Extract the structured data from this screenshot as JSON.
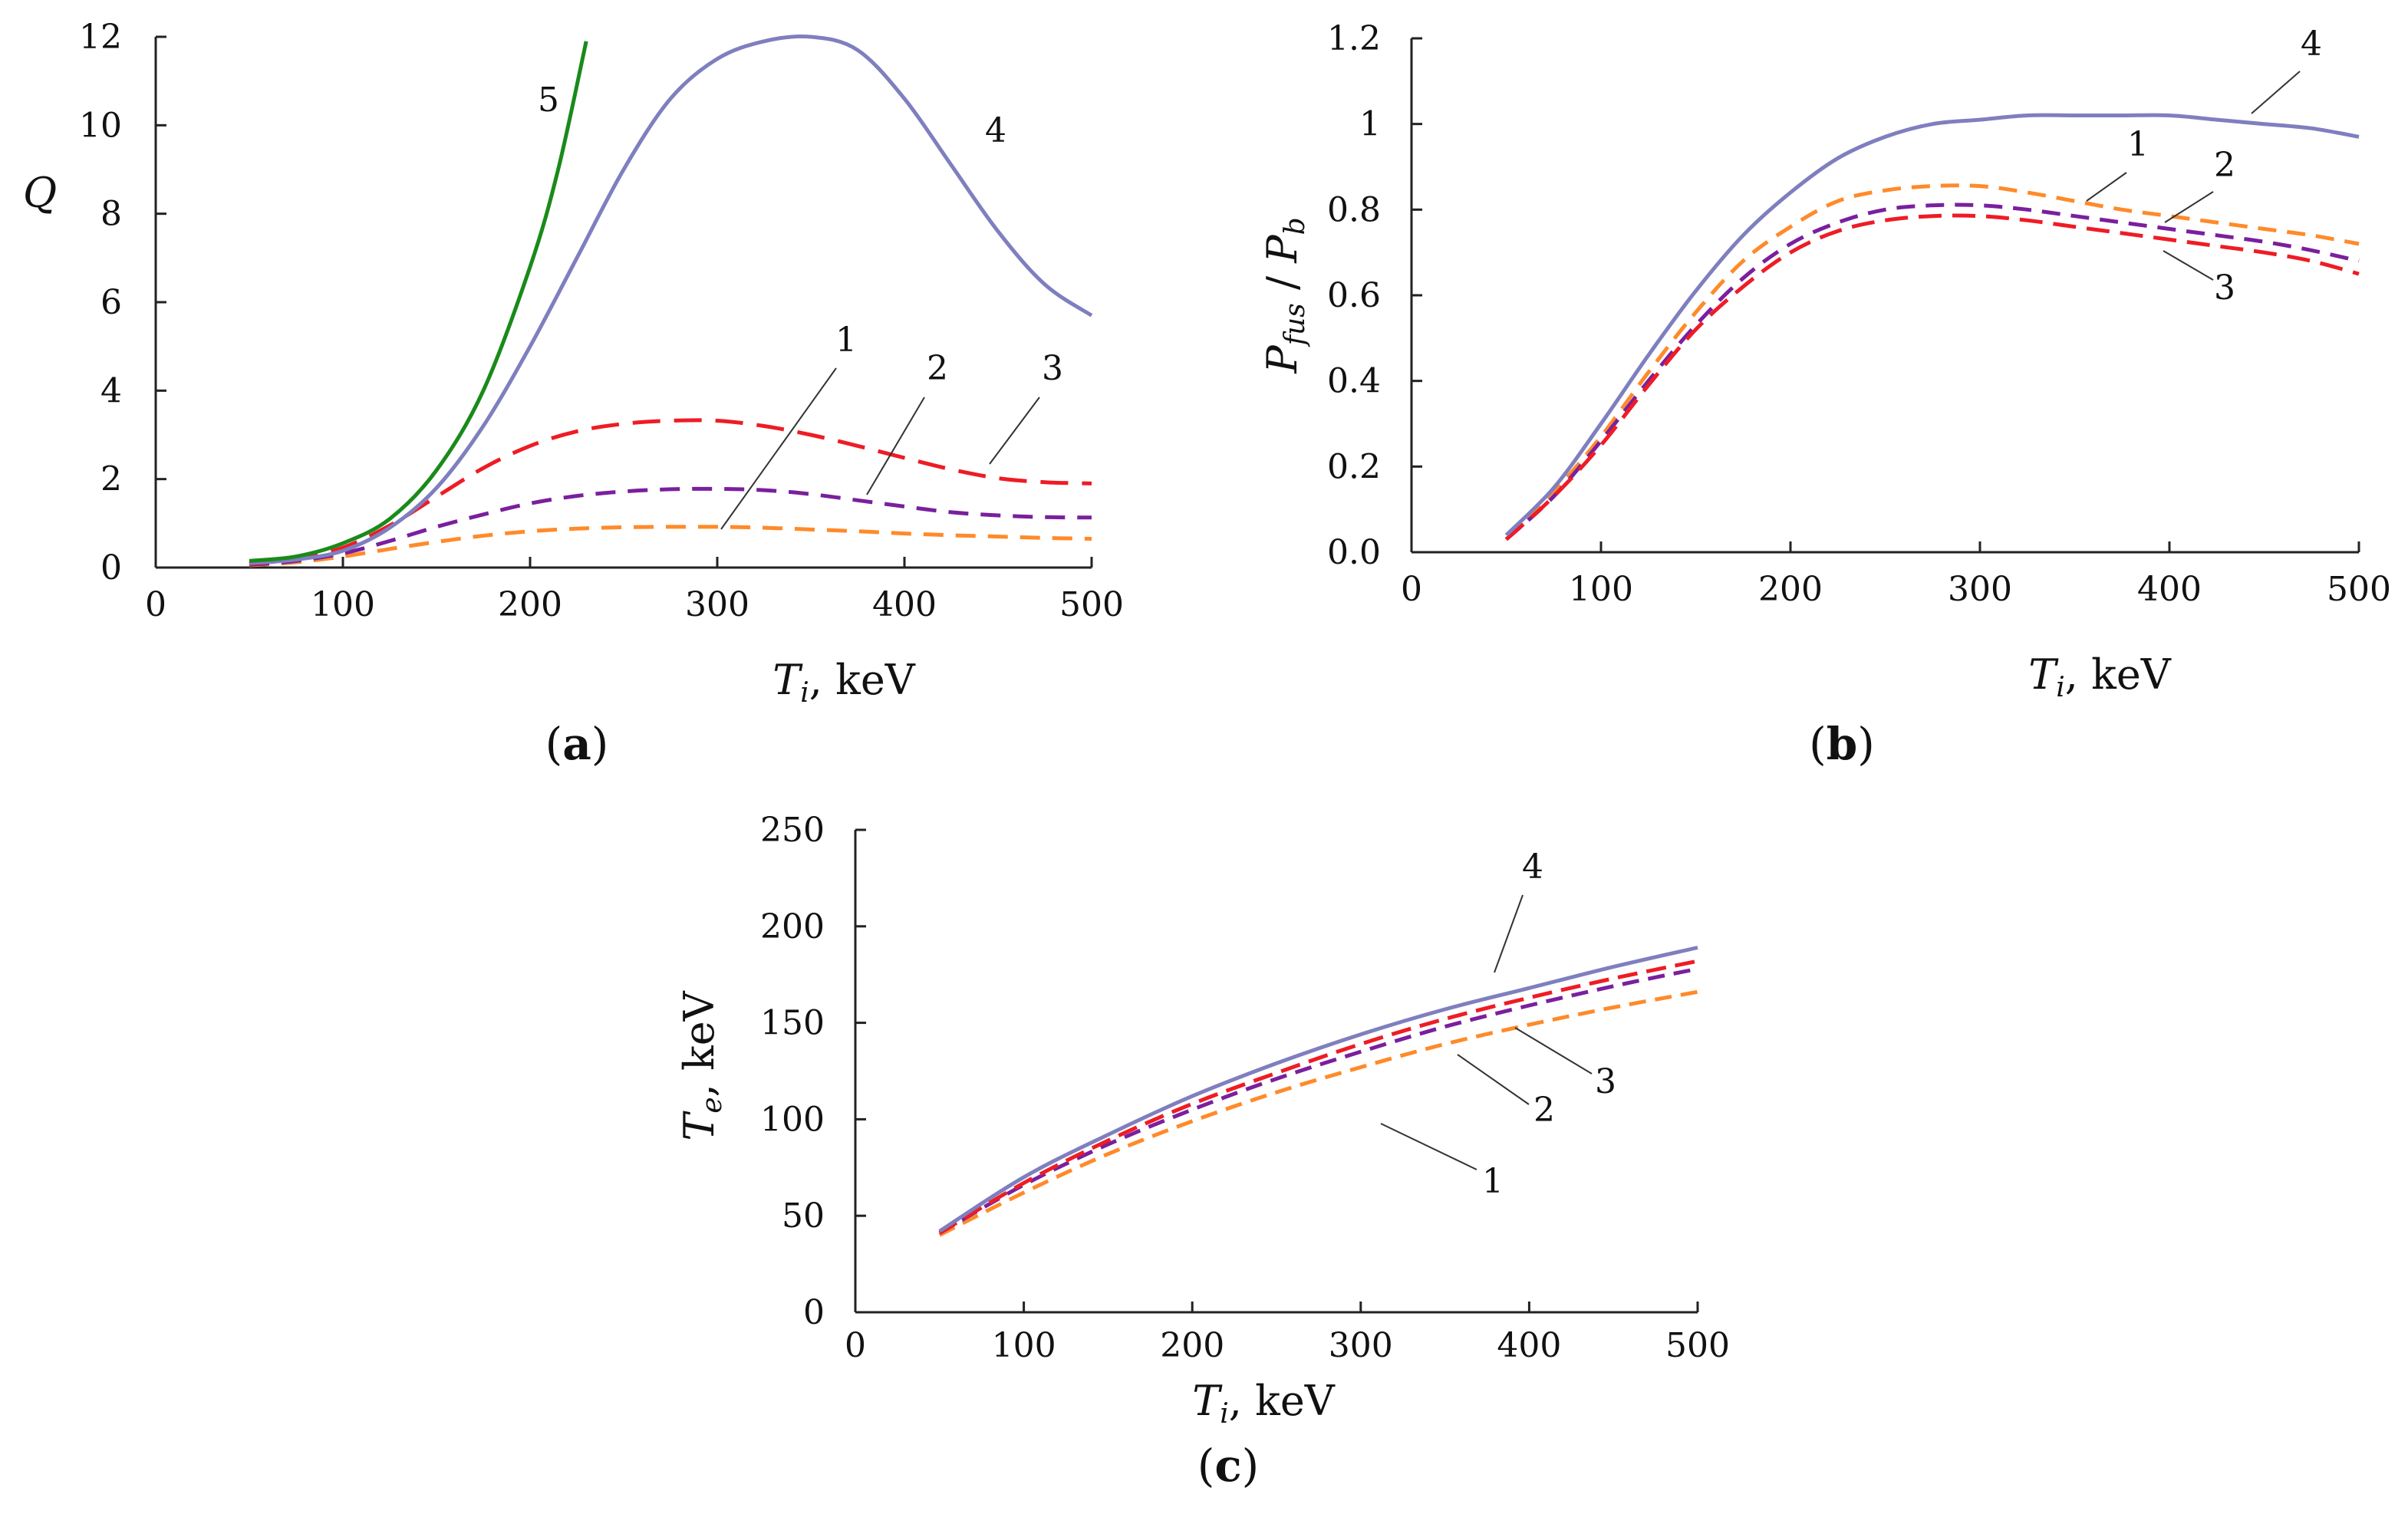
{
  "chart_data": [
    {
      "panel": "(a)",
      "panel_letter": "a",
      "type": "line",
      "xlabel_symbol": "T",
      "xlabel_sub": "i",
      "xlabel_unit": ", keV",
      "ylabel": "Q",
      "xlim": [
        0,
        500
      ],
      "ylim": [
        0,
        12
      ],
      "xticks": [
        0,
        100,
        200,
        300,
        400,
        500
      ],
      "yticks": [
        0,
        2,
        4,
        6,
        8,
        10,
        12
      ],
      "ytick_decimals": 0,
      "series": [
        {
          "name": "1",
          "color": "#ff8a2a",
          "dash": "26 16",
          "x": [
            50,
            75,
            100,
            125,
            150,
            175,
            200,
            225,
            250,
            275,
            300,
            325,
            350,
            375,
            400,
            425,
            450,
            475,
            500
          ],
          "y": [
            0.05,
            0.12,
            0.25,
            0.42,
            0.58,
            0.72,
            0.82,
            0.88,
            0.91,
            0.92,
            0.92,
            0.9,
            0.86,
            0.82,
            0.77,
            0.73,
            0.7,
            0.67,
            0.65
          ]
        },
        {
          "name": "2",
          "color": "#7a1f9e",
          "dash": "26 16",
          "x": [
            50,
            75,
            100,
            125,
            150,
            175,
            200,
            225,
            250,
            275,
            300,
            325,
            350,
            375,
            400,
            425,
            450,
            475,
            500
          ],
          "y": [
            0.06,
            0.15,
            0.32,
            0.6,
            0.92,
            1.2,
            1.45,
            1.62,
            1.72,
            1.77,
            1.78,
            1.75,
            1.66,
            1.52,
            1.38,
            1.25,
            1.18,
            1.14,
            1.13
          ]
        },
        {
          "name": "3",
          "color": "#ee1c25",
          "dash": "36 18",
          "x": [
            50,
            75,
            100,
            125,
            150,
            175,
            200,
            225,
            250,
            275,
            300,
            325,
            350,
            375,
            400,
            425,
            450,
            475,
            500
          ],
          "y": [
            0.08,
            0.2,
            0.45,
            0.95,
            1.6,
            2.25,
            2.75,
            3.08,
            3.25,
            3.32,
            3.32,
            3.2,
            3.0,
            2.75,
            2.48,
            2.22,
            2.02,
            1.93,
            1.9
          ]
        },
        {
          "name": "4",
          "color": "#7f7fbf",
          "dash": "",
          "x": [
            50,
            75,
            100,
            125,
            150,
            175,
            200,
            225,
            250,
            275,
            300,
            325,
            350,
            375,
            400,
            425,
            450,
            475,
            500
          ],
          "y": [
            0.1,
            0.18,
            0.38,
            0.9,
            1.8,
            3.2,
            5.0,
            7.0,
            9.0,
            10.6,
            11.5,
            11.9,
            12.0,
            11.7,
            10.6,
            9.1,
            7.6,
            6.4,
            5.7
          ]
        },
        {
          "name": "5",
          "color": "#1a8a1a",
          "dash": "",
          "x": [
            50,
            75,
            100,
            125,
            150,
            175,
            200,
            215,
            230
          ],
          "y": [
            0.15,
            0.25,
            0.55,
            1.1,
            2.2,
            4.0,
            6.8,
            9.0,
            11.9
          ]
        }
      ]
    },
    {
      "panel": "(b)",
      "panel_letter": "b",
      "type": "line",
      "xlabel_symbol": "T",
      "xlabel_sub": "i",
      "xlabel_unit": ", keV",
      "ylabel_num": "P",
      "ylabel_num_sub": "fus",
      "ylabel_sep": " / ",
      "ylabel_den": "P",
      "ylabel_den_sub": "b",
      "xlim": [
        0,
        500
      ],
      "ylim": [
        0,
        1.2
      ],
      "xticks": [
        0,
        100,
        200,
        300,
        400,
        500
      ],
      "yticks": [
        0,
        0.2,
        0.4,
        0.6,
        0.8,
        1,
        1.2
      ],
      "ytick_decimals": 1,
      "series": [
        {
          "name": "1",
          "color": "#ff8a2a",
          "dash": "24 14",
          "x": [
            50,
            75,
            100,
            125,
            150,
            175,
            200,
            225,
            250,
            275,
            300,
            325,
            350,
            375,
            400,
            425,
            450,
            475,
            500
          ],
          "y": [
            0.03,
            0.14,
            0.27,
            0.42,
            0.56,
            0.68,
            0.76,
            0.82,
            0.845,
            0.855,
            0.855,
            0.84,
            0.82,
            0.8,
            0.785,
            0.77,
            0.755,
            0.74,
            0.72
          ]
        },
        {
          "name": "2",
          "color": "#7a1f9e",
          "dash": "24 14",
          "x": [
            50,
            75,
            100,
            125,
            150,
            175,
            200,
            225,
            250,
            275,
            300,
            325,
            350,
            375,
            400,
            425,
            450,
            475,
            500
          ],
          "y": [
            0.03,
            0.13,
            0.26,
            0.4,
            0.53,
            0.64,
            0.72,
            0.77,
            0.8,
            0.81,
            0.81,
            0.8,
            0.785,
            0.77,
            0.755,
            0.74,
            0.725,
            0.705,
            0.68
          ]
        },
        {
          "name": "3",
          "color": "#ee1c25",
          "dash": "30 14",
          "x": [
            50,
            75,
            100,
            125,
            150,
            175,
            200,
            225,
            250,
            275,
            300,
            325,
            350,
            375,
            400,
            425,
            450,
            475,
            500
          ],
          "y": [
            0.03,
            0.13,
            0.25,
            0.39,
            0.52,
            0.62,
            0.7,
            0.75,
            0.775,
            0.785,
            0.785,
            0.775,
            0.76,
            0.745,
            0.73,
            0.715,
            0.7,
            0.68,
            0.65
          ]
        },
        {
          "name": "4",
          "color": "#7f7fbf",
          "dash": "",
          "x": [
            50,
            75,
            100,
            125,
            150,
            175,
            200,
            225,
            250,
            275,
            300,
            325,
            350,
            375,
            400,
            425,
            450,
            475,
            500
          ],
          "y": [
            0.04,
            0.15,
            0.3,
            0.46,
            0.61,
            0.74,
            0.84,
            0.92,
            0.97,
            1.0,
            1.01,
            1.02,
            1.02,
            1.02,
            1.02,
            1.01,
            1.0,
            0.99,
            0.97
          ]
        }
      ]
    },
    {
      "panel": "(c)",
      "panel_letter": "c",
      "type": "line",
      "xlabel_symbol": "T",
      "xlabel_sub": "i",
      "xlabel_unit": ", keV",
      "ylabel_symbol": "T",
      "ylabel_sub": "e",
      "ylabel_unit": ", keV",
      "xlim": [
        0,
        500
      ],
      "ylim": [
        0,
        250
      ],
      "xticks": [
        0,
        100,
        200,
        300,
        400,
        500
      ],
      "yticks": [
        0,
        50,
        100,
        150,
        200,
        250
      ],
      "ytick_decimals": 0,
      "series": [
        {
          "name": "1",
          "color": "#ff8a2a",
          "dash": "22 12",
          "x": [
            50,
            100,
            150,
            200,
            250,
            300,
            350,
            400,
            450,
            500
          ],
          "y": [
            40,
            62,
            82,
            99,
            114,
            127,
            139,
            149,
            158,
            166
          ]
        },
        {
          "name": "2",
          "color": "#7a1f9e",
          "dash": "22 12",
          "x": [
            50,
            100,
            150,
            200,
            250,
            300,
            350,
            400,
            450,
            500
          ],
          "y": [
            41,
            66,
            87,
            105,
            121,
            135,
            148,
            159,
            169,
            178
          ]
        },
        {
          "name": "3",
          "color": "#ee1c25",
          "dash": "26 12",
          "x": [
            50,
            100,
            150,
            200,
            250,
            300,
            350,
            400,
            450,
            500
          ],
          "y": [
            41,
            67,
            89,
            108,
            124,
            139,
            152,
            163,
            173,
            182
          ]
        },
        {
          "name": "4",
          "color": "#7f7fbf",
          "dash": "",
          "x": [
            50,
            100,
            150,
            200,
            250,
            300,
            350,
            400,
            450,
            500
          ],
          "y": [
            42,
            70,
            92,
            112,
            129,
            144,
            157,
            168,
            179,
            189
          ]
        }
      ]
    }
  ]
}
